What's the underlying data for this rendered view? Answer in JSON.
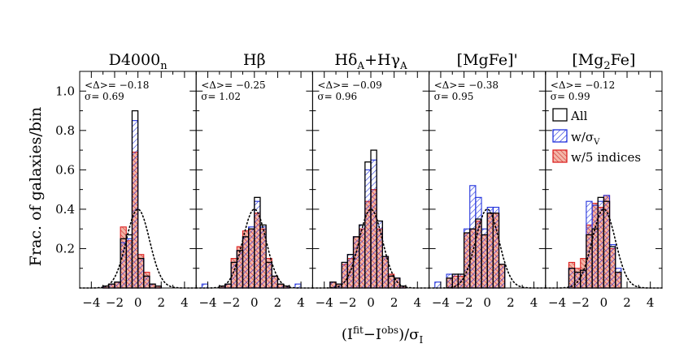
{
  "figure": {
    "ylabel": "Frac. of galaxies/bin",
    "xlabel": "(I^fit−I^obs)/σ_I",
    "ytick_labels": [
      "0.2",
      "0.4",
      "0.6",
      "0.8",
      "1.0"
    ],
    "xtick_labels": [
      "−4",
      "−2",
      "0",
      "2",
      "4"
    ],
    "legend": [
      {
        "label": "All",
        "style": "open",
        "color": "#000000"
      },
      {
        "label": "w/σ_V",
        "style": "hatch",
        "color": "#2233dd"
      },
      {
        "label": "w/5 indices",
        "style": "hatch-filled",
        "color": "#dd2222"
      }
    ],
    "colors": {
      "all": "#000000",
      "sigma": "#2233dd",
      "five": "#dd2222",
      "fill": "#f3b6a8",
      "gauss": "#000000"
    }
  },
  "chart_data": [
    {
      "type": "bar",
      "panel_title": "D4000",
      "panel_title_sub": "n",
      "stat_mean": "<Δ>= −0.18",
      "stat_sigma": "σ= 0.69",
      "xlim": [
        -5,
        5
      ],
      "ylim": [
        0,
        1.1
      ],
      "bin_width": 0.5,
      "bin_starts": [
        -3,
        -2.5,
        -2,
        -1.5,
        -1,
        -0.5,
        0,
        0.5,
        1,
        1.5,
        2
      ],
      "series": [
        {
          "name": "All",
          "values": [
            0.01,
            0.02,
            0.03,
            0.25,
            0.27,
            0.9,
            0.15,
            0.06,
            0.02,
            0.01,
            0.0
          ]
        },
        {
          "name": "w/σ_V",
          "values": [
            0.01,
            0.02,
            0.03,
            0.23,
            0.25,
            0.85,
            0.15,
            0.06,
            0.02,
            0.01,
            0.0
          ]
        },
        {
          "name": "w/5 indices",
          "values": [
            0.01,
            0.02,
            0.03,
            0.31,
            0.24,
            0.69,
            0.17,
            0.08,
            0.02,
            0.01,
            0.0
          ]
        }
      ],
      "gaussian": {
        "mean": 0.0,
        "sigma": 1.0,
        "peak": 0.4
      }
    },
    {
      "type": "bar",
      "panel_title": "Hβ",
      "panel_title_sub": "",
      "stat_mean": "<Δ>= −0.25",
      "stat_sigma": "σ= 1.02",
      "xlim": [
        -5,
        5
      ],
      "ylim": [
        0,
        1.1
      ],
      "bin_width": 0.5,
      "bin_starts": [
        -5,
        -4.5,
        -4,
        -3.5,
        -3,
        -2.5,
        -2,
        -1.5,
        -1,
        -0.5,
        0,
        0.5,
        1,
        1.5,
        2,
        2.5,
        3,
        3.5,
        4
      ],
      "series": [
        {
          "name": "All",
          "values": [
            0.0,
            0.0,
            0.0,
            0.0,
            0.01,
            0.02,
            0.13,
            0.19,
            0.26,
            0.3,
            0.46,
            0.32,
            0.13,
            0.06,
            0.02,
            0.01,
            0.0,
            0.0,
            0.0
          ]
        },
        {
          "name": "w/σ_V",
          "values": [
            0.0,
            0.02,
            0.0,
            0.0,
            0.01,
            0.02,
            0.13,
            0.19,
            0.26,
            0.31,
            0.44,
            0.31,
            0.13,
            0.06,
            0.02,
            0.01,
            0.0,
            0.02,
            0.0
          ]
        },
        {
          "name": "w/5 indices",
          "values": [
            0.0,
            0.0,
            0.0,
            0.0,
            0.01,
            0.02,
            0.15,
            0.21,
            0.29,
            0.3,
            0.38,
            0.3,
            0.15,
            0.06,
            0.02,
            0.01,
            0.0,
            0.0,
            0.0
          ]
        }
      ],
      "gaussian": {
        "mean": 0.0,
        "sigma": 1.0,
        "peak": 0.4
      }
    },
    {
      "type": "bar",
      "panel_title": "HδA+HγA",
      "panel_title_sub": "",
      "stat_mean": "<Δ>= −0.09",
      "stat_sigma": "σ= 0.96",
      "xlim": [
        -5,
        5
      ],
      "ylim": [
        0,
        1.1
      ],
      "bin_width": 0.5,
      "bin_starts": [
        -3.5,
        -3,
        -2.5,
        -2,
        -1.5,
        -1,
        -0.5,
        0,
        0.5,
        1,
        1.5,
        2,
        2.5
      ],
      "series": [
        {
          "name": "All",
          "values": [
            0.03,
            0.02,
            0.13,
            0.17,
            0.26,
            0.32,
            0.64,
            0.7,
            0.34,
            0.16,
            0.06,
            0.05,
            0.01
          ]
        },
        {
          "name": "w/σ_V",
          "values": [
            0.03,
            0.02,
            0.13,
            0.17,
            0.26,
            0.32,
            0.6,
            0.65,
            0.34,
            0.16,
            0.06,
            0.05,
            0.01
          ]
        },
        {
          "name": "w/5 indices",
          "values": [
            0.03,
            0.02,
            0.12,
            0.15,
            0.26,
            0.3,
            0.44,
            0.5,
            0.3,
            0.16,
            0.07,
            0.05,
            0.01
          ]
        }
      ],
      "gaussian": {
        "mean": 0.0,
        "sigma": 1.0,
        "peak": 0.4
      }
    },
    {
      "type": "bar",
      "panel_title": "[MgFe]'",
      "panel_title_sub": "",
      "stat_mean": "<Δ>= −0.38",
      "stat_sigma": "σ= 0.95",
      "xlim": [
        -5,
        5
      ],
      "ylim": [
        0,
        1.1
      ],
      "bin_width": 0.5,
      "bin_starts": [
        -4.5,
        -4,
        -3.5,
        -3,
        -2.5,
        -2,
        -1.5,
        -1,
        -0.5,
        0,
        0.5,
        1,
        1.5,
        2
      ],
      "series": [
        {
          "name": "All",
          "values": [
            0.0,
            0.0,
            0.05,
            0.07,
            0.07,
            0.28,
            0.3,
            0.35,
            0.27,
            0.38,
            0.38,
            0.12,
            0.0,
            0.0
          ]
        },
        {
          "name": "w/σ_V",
          "values": [
            0.03,
            0.0,
            0.07,
            0.07,
            0.07,
            0.3,
            0.52,
            0.46,
            0.3,
            0.41,
            0.41,
            0.12,
            0.0,
            0.0
          ]
        },
        {
          "name": "w/5 indices",
          "values": [
            0.0,
            0.0,
            0.05,
            0.06,
            0.06,
            0.28,
            0.3,
            0.34,
            0.27,
            0.38,
            0.38,
            0.12,
            0.0,
            0.0
          ]
        }
      ],
      "gaussian": {
        "mean": 0.0,
        "sigma": 1.0,
        "peak": 0.4
      }
    },
    {
      "type": "bar",
      "panel_title": "[Mg",
      "panel_title_sub": "2",
      "panel_title_suffix": "Fe]",
      "stat_mean": "<Δ>= −0.12",
      "stat_sigma": "σ= 0.99",
      "xlim": [
        -5,
        5
      ],
      "ylim": [
        0,
        1.1
      ],
      "bin_width": 0.5,
      "bin_starts": [
        -3,
        -2.5,
        -2,
        -1.5,
        -1,
        -0.5,
        0,
        0.5,
        1,
        1.5,
        2
      ],
      "series": [
        {
          "name": "All",
          "values": [
            0.1,
            0.08,
            0.09,
            0.27,
            0.3,
            0.46,
            0.44,
            0.21,
            0.08,
            0.0,
            0.0
          ]
        },
        {
          "name": "w/σ_V",
          "values": [
            0.1,
            0.08,
            0.09,
            0.44,
            0.42,
            0.44,
            0.47,
            0.22,
            0.1,
            0.0,
            0.0
          ]
        },
        {
          "name": "w/5 indices",
          "values": [
            0.13,
            0.1,
            0.15,
            0.32,
            0.43,
            0.41,
            0.47,
            0.2,
            0.08,
            0.0,
            0.0
          ]
        }
      ],
      "gaussian": {
        "mean": 0.0,
        "sigma": 1.0,
        "peak": 0.4
      }
    }
  ]
}
